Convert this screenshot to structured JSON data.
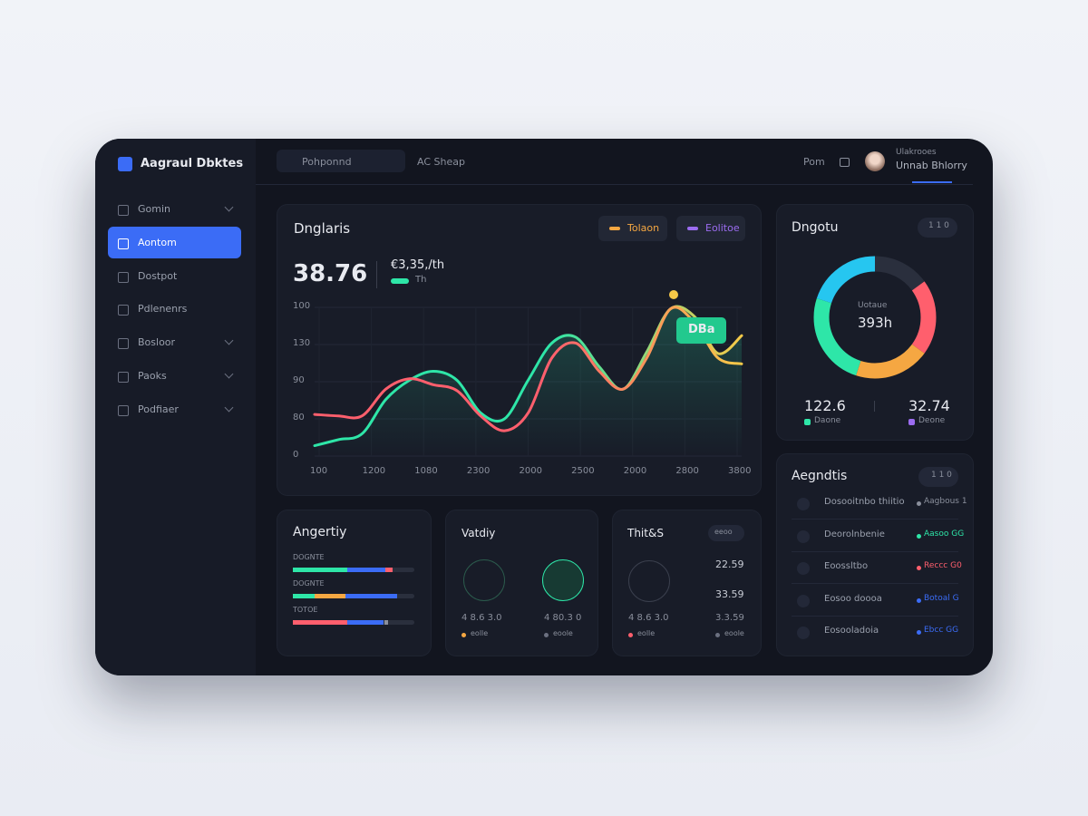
{
  "sidebar": {
    "brand": "Aagraul Dbktes",
    "menu": [
      "Gomin",
      "Aontom",
      "Dostpot",
      "Pdlenenrs",
      "Bosloor",
      "Paoks",
      "Podfiaer"
    ]
  },
  "topbar": {
    "search": "Pohponnd",
    "link": "AC Sheap",
    "action": "Pom",
    "user_name": "Ulakrooes",
    "user_role": "Unnab Bhlorry"
  },
  "main_chart": {
    "title": "Dnglaris",
    "big_value": "38.76",
    "sub_value": "€3,35,/th",
    "sub_label": "Th",
    "tooltip": "DBa",
    "legend": [
      {
        "name": "Tolaon",
        "color": "#f5a742"
      },
      {
        "name": "Eolitoe",
        "color": "#9b6cf0"
      }
    ],
    "y_labels": [
      "0",
      "80",
      "90",
      "130",
      "100"
    ],
    "categories": [
      "100",
      "1200",
      "1080",
      "2300",
      "2000",
      "2500",
      "2000",
      "2800",
      "3800"
    ],
    "ylim": [
      0,
      100
    ],
    "series": [
      {
        "color": "#ff5f6d",
        "color_end": "#f7c948",
        "values": [
          28,
          27,
          27,
          45,
          52,
          48,
          44,
          27,
          17,
          29,
          66,
          76,
          57,
          45,
          66,
          99,
          90,
          66,
          62
        ]
      },
      {
        "color": "#2ee6a8",
        "color_end": "#f7c948",
        "values": [
          7,
          11,
          15,
          38,
          51,
          57,
          51,
          29,
          25,
          51,
          76,
          80,
          60,
          45,
          70,
          99,
          94,
          69,
          81
        ]
      }
    ]
  },
  "donut": {
    "title": "Dngotu",
    "badge": "1 1 0",
    "center_label": "Uotaue",
    "center_value": "393h",
    "segments": [
      {
        "value": 15,
        "color": "#2a2f3d"
      },
      {
        "value": 20,
        "color": "#ff5f6d"
      },
      {
        "value": 20,
        "color": "#f5a742"
      },
      {
        "value": 25,
        "color": "#2ee6a8"
      },
      {
        "value": 20,
        "color": "#26c6f0"
      }
    ],
    "stats": [
      {
        "value": "122.6",
        "label": "Daone",
        "color": "#2ee6a8"
      },
      {
        "value": "32.74",
        "label": "Deone",
        "color": "#9b6cf0"
      }
    ]
  },
  "activity": {
    "title": "Angertiy",
    "bars": [
      {
        "label": "DOGNTE",
        "segments": [
          {
            "value": 45,
            "color": "#2ee6a8"
          },
          {
            "value": 31,
            "color": "#3b6cf6"
          },
          {
            "value": 6,
            "color": "#ff5f6d"
          }
        ]
      },
      {
        "label": "DOGNTE",
        "segments": [
          {
            "value": 18,
            "color": "#2ee6a8"
          },
          {
            "value": 25,
            "color": "#f5a742"
          },
          {
            "value": 43,
            "color": "#3b6cf6"
          }
        ]
      },
      {
        "label": "TOTOE",
        "segments": [
          {
            "value": 45,
            "color": "#ff5f6d"
          },
          {
            "value": 30,
            "color": "#3b6cf6"
          },
          {
            "value": 3,
            "color": "#8a8f9c"
          }
        ]
      }
    ]
  },
  "vitality": {
    "title": "Vatdiy",
    "items": [
      {
        "value": "4 8.6 3.0",
        "label": "eolle",
        "color": "#f5a742"
      },
      {
        "value": "4 80.3 0",
        "label": "eoole",
        "color": "#6b7080"
      }
    ]
  },
  "third": {
    "title": "Thit&S",
    "badge": "eeoo",
    "numbers": [
      "22.59",
      "33.59"
    ],
    "items": [
      {
        "value": "4 8.6 3.0",
        "label": "eolle",
        "color": "#ff5f6d"
      },
      {
        "value": "3.3.59",
        "label": "eoole",
        "color": "#6b7080"
      }
    ]
  },
  "agents": {
    "title": "Aegndtis",
    "badge": "1 1 0",
    "rows": [
      {
        "name": "Dosooitnbo thiitio",
        "status": "Aagbous 1",
        "color": "#8a8f9c"
      },
      {
        "name": "Deorolnbenie",
        "status": "Aasoo GG",
        "color": "#2ee6a8"
      },
      {
        "name": "Eoossltbo",
        "status": "Reccc G0",
        "color": "#ff5f6d"
      },
      {
        "name": "Eosoo doooa",
        "status": "Botoal G",
        "color": "#3b6cf6"
      },
      {
        "name": "Eosooladoia",
        "status": "Ebcc GG",
        "color": "#3b6cf6"
      }
    ]
  }
}
